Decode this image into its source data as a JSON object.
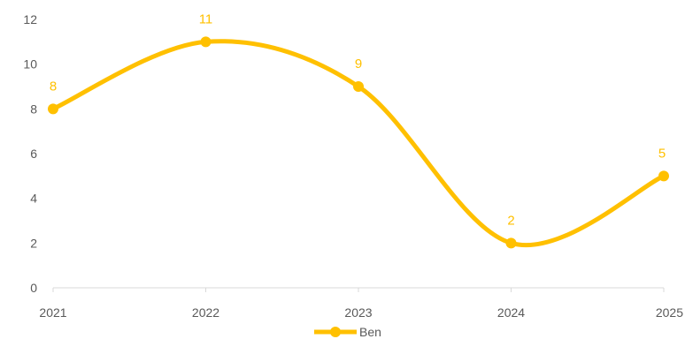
{
  "chart_data": {
    "type": "line",
    "smooth": true,
    "x": [
      "2021",
      "2022",
      "2023",
      "2024",
      "2025"
    ],
    "series": [
      {
        "name": "Ben",
        "values": [
          8,
          11,
          9,
          2,
          5
        ]
      }
    ],
    "ylim": [
      0,
      12
    ],
    "yticks": [
      0,
      2,
      4,
      6,
      8,
      10,
      12
    ],
    "data_labels": true,
    "grid": false,
    "legend_position": "bottom",
    "colors": {
      "series": "#FFC000",
      "axis": "#D9D9D9",
      "tick_text": "#595959"
    }
  }
}
